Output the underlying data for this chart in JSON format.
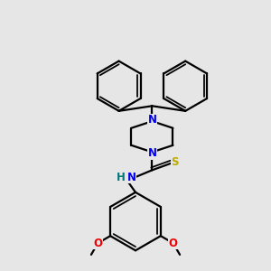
{
  "background_color": "#e6e6e6",
  "line_color": "#000000",
  "N_color": "#0000ee",
  "S_color": "#bbaa00",
  "O_color": "#ee0000",
  "H_color": "#007777",
  "line_width": 1.6,
  "figsize": [
    3.0,
    3.0
  ],
  "dpi": 100,
  "xlim": [
    -3.8,
    3.8
  ],
  "ylim": [
    -4.8,
    4.8
  ]
}
